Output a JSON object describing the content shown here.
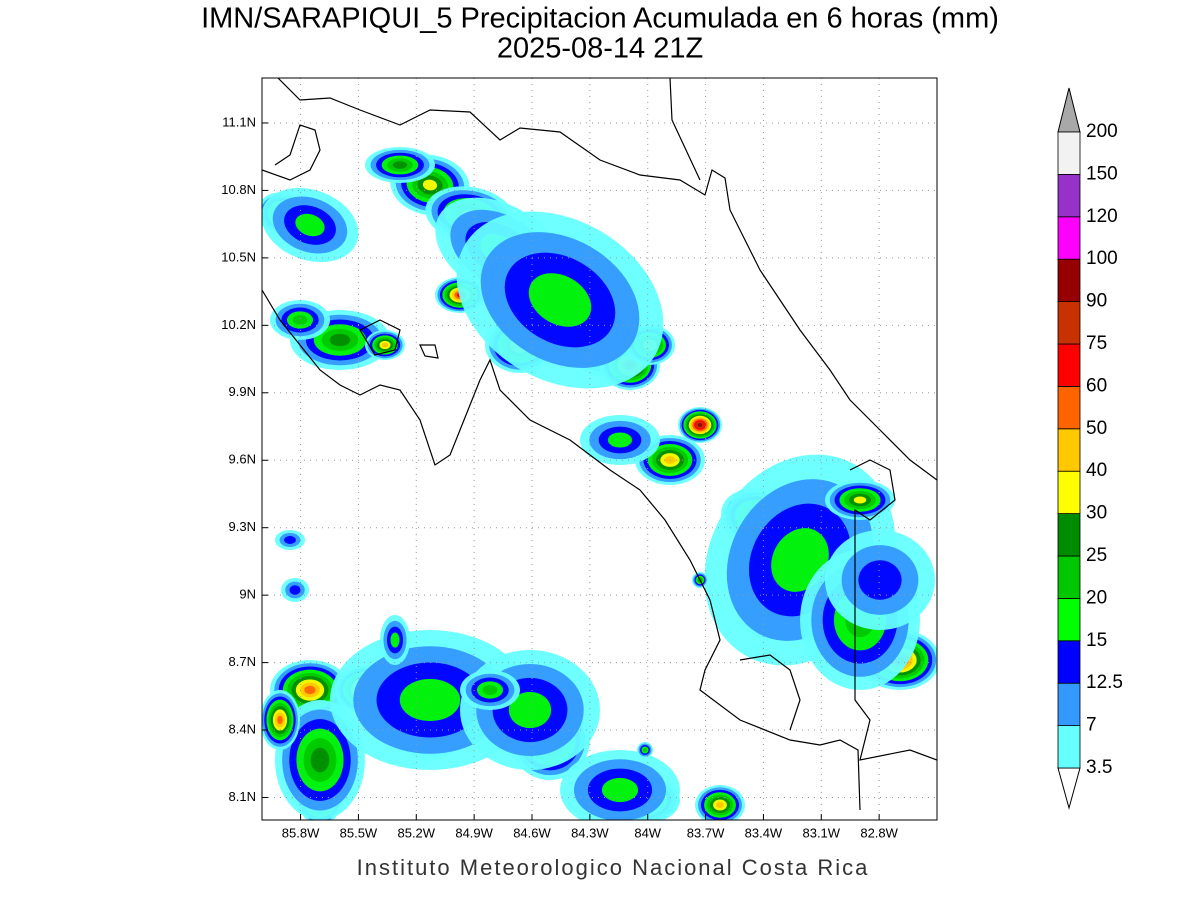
{
  "map": {
    "title": "IMN/SARAPIQUI_5 Precipitacion Acumulada en 6 horas (mm)",
    "subtitle": "2025-08-14 21Z",
    "footer": "Instituto Meteorologico Nacional Costa Rica",
    "xlim": [
      -86.0,
      -82.5
    ],
    "ylim": [
      8.0,
      11.3
    ],
    "grid": true,
    "xticks": [
      {
        "value": -85.8,
        "label": "85.8W"
      },
      {
        "value": -85.5,
        "label": "85.5W"
      },
      {
        "value": -85.2,
        "label": "85.2W"
      },
      {
        "value": -84.9,
        "label": "84.9W"
      },
      {
        "value": -84.6,
        "label": "84.6W"
      },
      {
        "value": -84.3,
        "label": "84.3W"
      },
      {
        "value": -84.0,
        "label": "84W"
      },
      {
        "value": -83.7,
        "label": "83.7W"
      },
      {
        "value": -83.4,
        "label": "83.4W"
      },
      {
        "value": -83.1,
        "label": "83.1W"
      },
      {
        "value": -82.8,
        "label": "82.8W"
      }
    ],
    "yticks": [
      {
        "value": 8.1,
        "label": "8.1N"
      },
      {
        "value": 8.4,
        "label": "8.4N"
      },
      {
        "value": 8.7,
        "label": "8.7N"
      },
      {
        "value": 9.0,
        "label": "9N"
      },
      {
        "value": 9.3,
        "label": "9.3N"
      },
      {
        "value": 9.6,
        "label": "9.6N"
      },
      {
        "value": 9.9,
        "label": "9.9N"
      },
      {
        "value": 10.2,
        "label": "10.2N"
      },
      {
        "value": 10.5,
        "label": "10.5N"
      },
      {
        "value": 10.8,
        "label": "10.8N"
      },
      {
        "value": 11.1,
        "label": "11.1N"
      }
    ],
    "colorbar": {
      "levels": [
        3.5,
        7,
        12.5,
        15,
        20,
        25,
        30,
        40,
        50,
        60,
        75,
        90,
        100,
        120,
        150,
        200
      ],
      "colors": [
        "#66ffff",
        "#3399ff",
        "#0000ff",
        "#00ff00",
        "#00c800",
        "#008c00",
        "#ffff00",
        "#ffc800",
        "#ff6400",
        "#ff0000",
        "#c83200",
        "#960000",
        "#ff00ff",
        "#9632c8",
        "#f2f2f2"
      ],
      "under_color": "#ffffff",
      "over_color": "#a8a8a8"
    }
  }
}
